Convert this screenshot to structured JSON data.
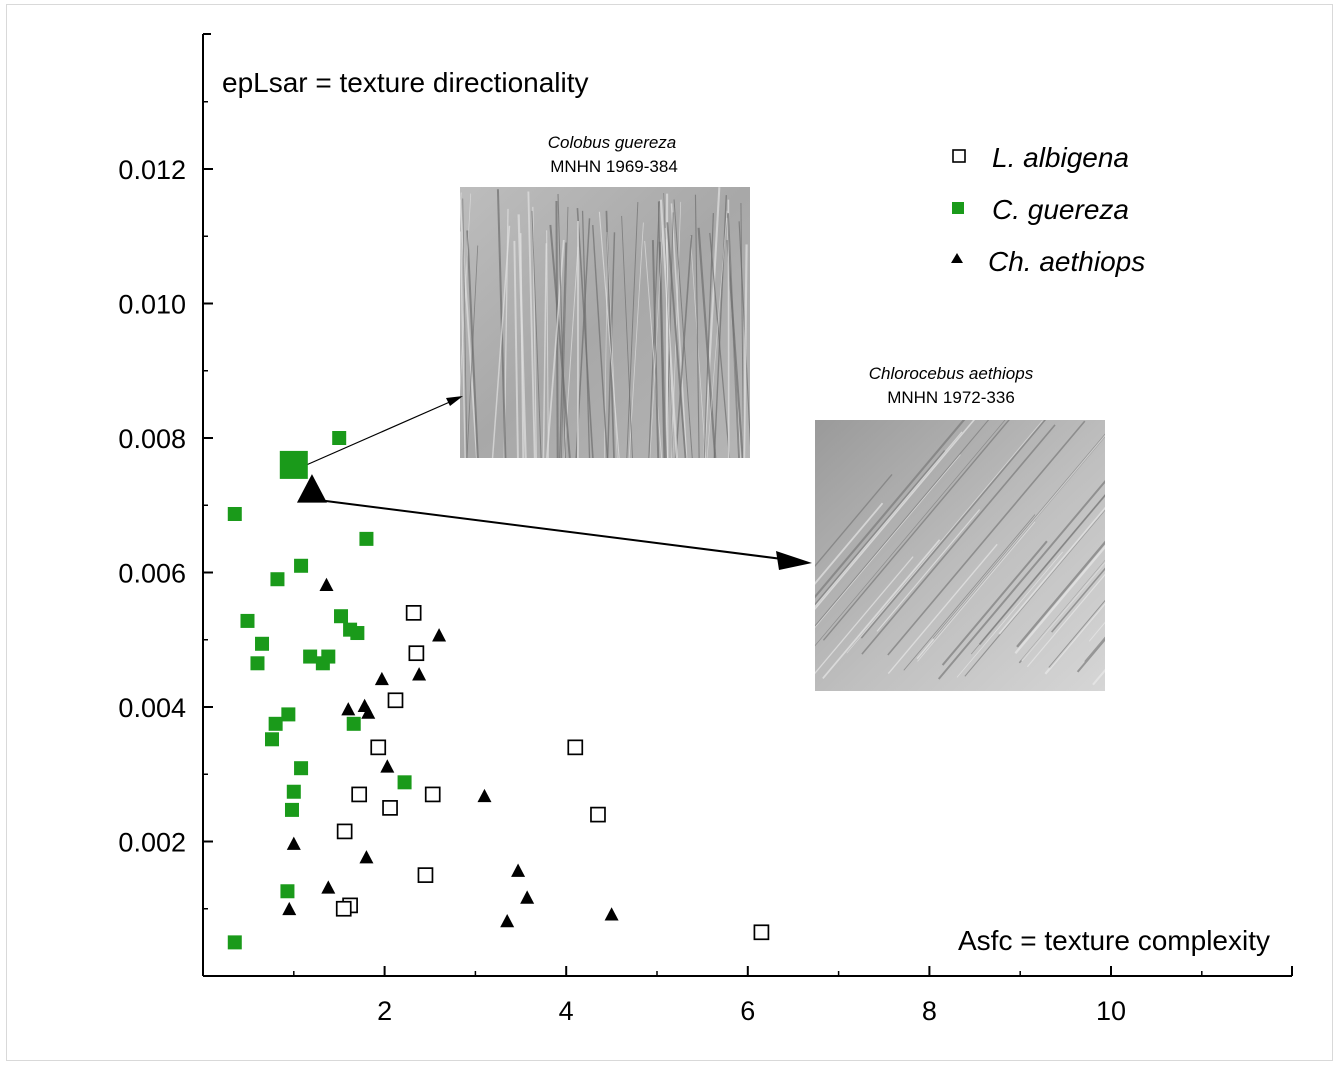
{
  "chart_data": {
    "type": "scatter",
    "ylabel": "epLsar = texture directionality",
    "xlabel": "Asfc = texture complexity",
    "xlim": [
      0,
      12
    ],
    "ylim": [
      0,
      0.014
    ],
    "x_ticks": [
      2,
      4,
      6,
      8,
      10
    ],
    "x_tick_labels": [
      "2",
      "4",
      "6",
      "8",
      "10"
    ],
    "y_ticks": [
      0.002,
      0.004,
      0.006,
      0.008,
      0.01,
      0.012
    ],
    "y_tick_labels": [
      "0.002",
      "0.004",
      "0.006",
      "0.008",
      "0.010",
      "0.012"
    ],
    "grid": false,
    "legend_position": "top-right",
    "series": [
      {
        "name": "L. albigena",
        "marker": "open-square",
        "color": "#000000",
        "points": [
          [
            2.32,
            0.0054
          ],
          [
            2.35,
            0.0048
          ],
          [
            2.12,
            0.0041
          ],
          [
            1.93,
            0.0034
          ],
          [
            1.72,
            0.0027
          ],
          [
            2.06,
            0.0025
          ],
          [
            2.53,
            0.0027
          ],
          [
            1.56,
            0.00215
          ],
          [
            2.45,
            0.0015
          ],
          [
            1.62,
            0.00105
          ],
          [
            1.55,
            0.001
          ],
          [
            4.1,
            0.0034
          ],
          [
            4.35,
            0.0024
          ],
          [
            6.15,
            0.00065
          ]
        ]
      },
      {
        "name": "C. guereza",
        "marker": "filled-square",
        "color": "#1a9a1a",
        "points": [
          [
            1.5,
            0.008
          ],
          [
            0.35,
            0.00687
          ],
          [
            1.8,
            0.0065
          ],
          [
            1.08,
            0.0061
          ],
          [
            0.82,
            0.0059
          ],
          [
            1.52,
            0.00535
          ],
          [
            0.49,
            0.00528
          ],
          [
            1.62,
            0.00515
          ],
          [
            1.7,
            0.0051
          ],
          [
            0.65,
            0.00494
          ],
          [
            1.18,
            0.00475
          ],
          [
            1.38,
            0.00475
          ],
          [
            1.32,
            0.00465
          ],
          [
            0.6,
            0.00465
          ],
          [
            0.8,
            0.00375
          ],
          [
            0.94,
            0.00389
          ],
          [
            1.66,
            0.00375
          ],
          [
            0.76,
            0.00352
          ],
          [
            1.08,
            0.00309
          ],
          [
            2.22,
            0.00288
          ],
          [
            1.0,
            0.00274
          ],
          [
            0.98,
            0.00247
          ],
          [
            0.93,
            0.00126
          ],
          [
            0.35,
            0.0005
          ]
        ]
      },
      {
        "name": "Ch. aethiops",
        "marker": "filled-triangle",
        "color": "#000000",
        "points": [
          [
            1.36,
            0.0058
          ],
          [
            2.6,
            0.00505
          ],
          [
            2.38,
            0.00447
          ],
          [
            1.97,
            0.0044
          ],
          [
            1.78,
            0.004
          ],
          [
            1.6,
            0.00395
          ],
          [
            1.82,
            0.0039
          ],
          [
            2.03,
            0.0031
          ],
          [
            3.1,
            0.00266
          ],
          [
            1.0,
            0.00195
          ],
          [
            1.8,
            0.00175
          ],
          [
            3.47,
            0.00155
          ],
          [
            1.38,
            0.0013
          ],
          [
            3.57,
            0.00115
          ],
          [
            0.95,
            0.00098
          ],
          [
            4.5,
            0.0009
          ],
          [
            3.35,
            0.0008
          ]
        ]
      }
    ],
    "highlighted": [
      {
        "series": "C. guereza",
        "x": 1.0,
        "y": 0.0076,
        "marker": "filled-square",
        "color": "#1a9a1a"
      },
      {
        "series": "Ch. aethiops",
        "x": 1.2,
        "y": 0.0072,
        "marker": "filled-triangle",
        "color": "#000000"
      }
    ],
    "insets": [
      {
        "species": "Colobus guereza",
        "specimen": "MNHN 1969-384"
      },
      {
        "species": "Chlorocebus aethiops",
        "specimen": "MNHN 1972-336"
      }
    ]
  }
}
